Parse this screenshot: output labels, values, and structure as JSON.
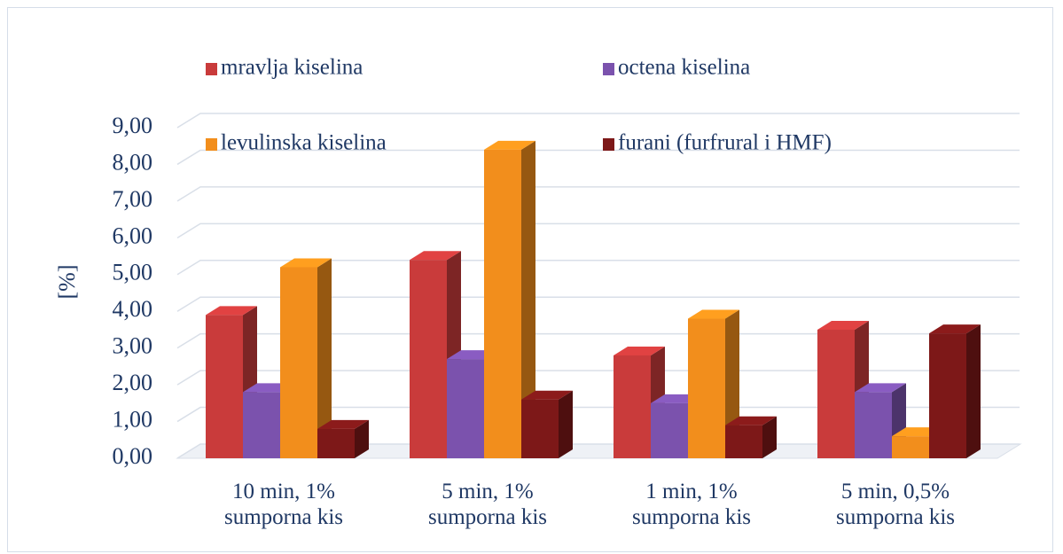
{
  "chart_data": {
    "type": "bar3d",
    "y_label": "[%]",
    "categories": [
      "10 min, 1%\nsumporna kis",
      "5 min, 1%\nsumporna kis",
      "1 min, 1%\nsumporna kis",
      "5 min, 0,5%\nsumporna kis"
    ],
    "series": [
      {
        "name": "mravlja kiselina",
        "color": "#c93b3b",
        "values": [
          3.9,
          5.4,
          2.8,
          3.5
        ]
      },
      {
        "name": "octena kiselina",
        "color": "#7b52ad",
        "values": [
          1.8,
          2.7,
          1.5,
          1.8
        ]
      },
      {
        "name": "levulinska kiselina",
        "color": "#f28e1c",
        "values": [
          5.2,
          8.4,
          3.8,
          0.6
        ]
      },
      {
        "name": "furani (furfrural i HMF)",
        "color": "#7d1818",
        "values": [
          0.8,
          1.6,
          0.9,
          3.4
        ]
      }
    ],
    "ylim": [
      0,
      9
    ],
    "yticks": [
      {
        "value": 0,
        "label": "0,00"
      },
      {
        "value": 1,
        "label": "1,00"
      },
      {
        "value": 2,
        "label": "2,00"
      },
      {
        "value": 3,
        "label": "3,00"
      },
      {
        "value": 4,
        "label": "4,00"
      },
      {
        "value": 5,
        "label": "5,00"
      },
      {
        "value": 6,
        "label": "6,00"
      },
      {
        "value": 7,
        "label": "7,00"
      },
      {
        "value": 8,
        "label": "8,00"
      },
      {
        "value": 9,
        "label": "9,00"
      }
    ],
    "grid": true
  }
}
